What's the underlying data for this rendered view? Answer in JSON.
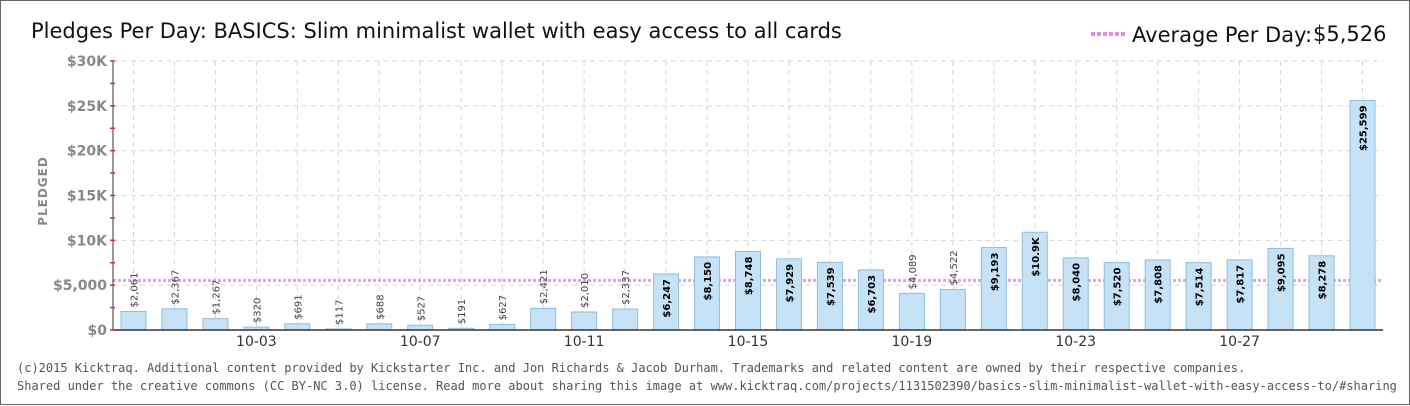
{
  "footer": {
    "line1": "(c)2015 Kicktraq. Additional content provided by Kickstarter Inc. and Jon Richards & Jacob Durham. Trademarks and related content are owned by their respective companies.",
    "line2": "Shared under the creative commons (CC BY-NC 3.0) license. Read more about sharing this image at www.kicktraq.com/projects/1131502390/basics-slim-minimalist-wallet-with-easy-access-to/#sharing"
  },
  "colors": {
    "bar_fill": "#c6e2f7",
    "bar_stroke": "#8fbde0",
    "average_line": "#e28ce2",
    "grid": "#d6d6d6",
    "axis_tick": "#cc3333"
  },
  "chart_data": {
    "type": "bar",
    "title": "Pledges Per Day: BASICS: Slim minimalist wallet with easy access to all cards",
    "ylabel": "PLEDGED",
    "ylim": [
      0,
      30000
    ],
    "y_ticks": [
      {
        "value": 0,
        "label": "$0"
      },
      {
        "value": 5000,
        "label": "$5,000"
      },
      {
        "value": 10000,
        "label": "$10K"
      },
      {
        "value": 15000,
        "label": "$15K"
      },
      {
        "value": 20000,
        "label": "$20K"
      },
      {
        "value": 25000,
        "label": "$25K"
      },
      {
        "value": 30000,
        "label": "$30K"
      }
    ],
    "x_ticks": [
      {
        "index": 3,
        "label": "10-03"
      },
      {
        "index": 7,
        "label": "10-07"
      },
      {
        "index": 11,
        "label": "10-11"
      },
      {
        "index": 15,
        "label": "10-15"
      },
      {
        "index": 19,
        "label": "10-19"
      },
      {
        "index": 23,
        "label": "10-23"
      },
      {
        "index": 27,
        "label": "10-27"
      }
    ],
    "average": {
      "label": "Average Per Day:",
      "value": 5526,
      "value_label": "$5,526"
    },
    "grid": true,
    "legend": "top-right",
    "bars": [
      {
        "value": 2061,
        "label": "$2,061"
      },
      {
        "value": 2367,
        "label": "$2,367"
      },
      {
        "value": 1267,
        "label": "$1,267"
      },
      {
        "value": 320,
        "label": "$320"
      },
      {
        "value": 691,
        "label": "$691"
      },
      {
        "value": 117,
        "label": "$117"
      },
      {
        "value": 688,
        "label": "$688"
      },
      {
        "value": 527,
        "label": "$527"
      },
      {
        "value": 191,
        "label": "$191"
      },
      {
        "value": 627,
        "label": "$627"
      },
      {
        "value": 2421,
        "label": "$2,421"
      },
      {
        "value": 2010,
        "label": "$2,010"
      },
      {
        "value": 2337,
        "label": "$2,337"
      },
      {
        "value": 6247,
        "label": "$6,247"
      },
      {
        "value": 8150,
        "label": "$8,150"
      },
      {
        "value": 8748,
        "label": "$8,748"
      },
      {
        "value": 7929,
        "label": "$7,929"
      },
      {
        "value": 7539,
        "label": "$7,539"
      },
      {
        "value": 6703,
        "label": "$6,703"
      },
      {
        "value": 4089,
        "label": "$4,089"
      },
      {
        "value": 4522,
        "label": "$4,522"
      },
      {
        "value": 9193,
        "label": "$9,193"
      },
      {
        "value": 10900,
        "label": "$10.9K"
      },
      {
        "value": 8040,
        "label": "$8,040"
      },
      {
        "value": 7520,
        "label": "$7,520"
      },
      {
        "value": 7808,
        "label": "$7,808"
      },
      {
        "value": 7514,
        "label": "$7,514"
      },
      {
        "value": 7817,
        "label": "$7,817"
      },
      {
        "value": 9095,
        "label": "$9,095"
      },
      {
        "value": 8278,
        "label": "$8,278"
      },
      {
        "value": 25599,
        "label": "$25,599"
      }
    ]
  }
}
